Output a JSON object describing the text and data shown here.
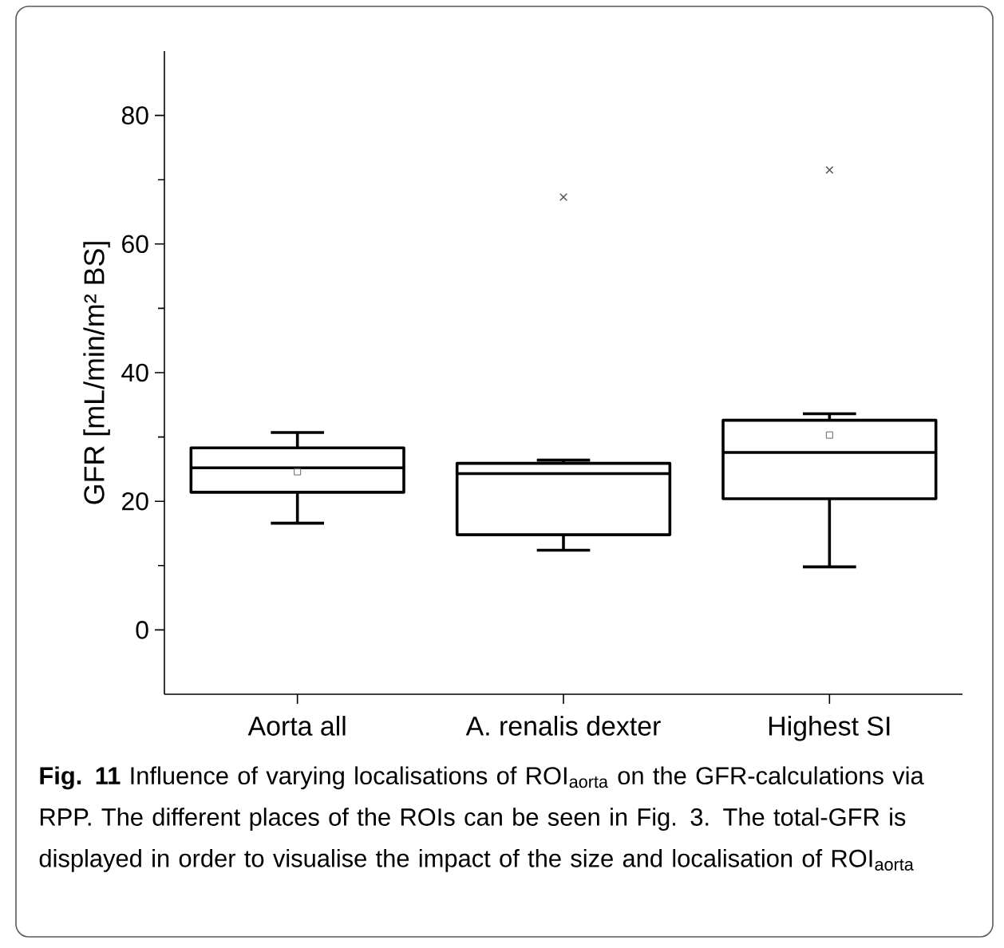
{
  "chart_data": {
    "type": "box",
    "ylabel": "GFR [mL/min/m² BS]",
    "categories": [
      "Aorta all",
      "A. renalis dexter",
      "Highest SI"
    ],
    "boxes": [
      {
        "low": 16.6,
        "q1": 21.4,
        "median": 25.2,
        "q3": 28.3,
        "high": 30.7,
        "mean": 24.6
      },
      {
        "low": 12.4,
        "q1": 14.8,
        "median": 24.3,
        "q3": 25.9,
        "high": 26.4,
        "outliers": [
          67.3
        ]
      },
      {
        "low": 9.8,
        "q1": 20.4,
        "median": 27.6,
        "q3": 32.6,
        "high": 33.6,
        "mean": 30.3,
        "outliers": [
          71.5
        ]
      }
    ],
    "color": "#000000",
    "ylim": [
      -10,
      90
    ],
    "yticks": [
      0,
      20,
      40,
      60,
      80
    ],
    "annotations": [
      "**Fig. 11** Influence of varying localisations of ROI$_{aorta}$ on the GFR-calculations via RPP. The different places of the ROIs can be seen in Fig. 3. The total-GFR is displayed in order to visualise the impact of the size and localisation of ROI$_{aorta}$"
    ]
  }
}
